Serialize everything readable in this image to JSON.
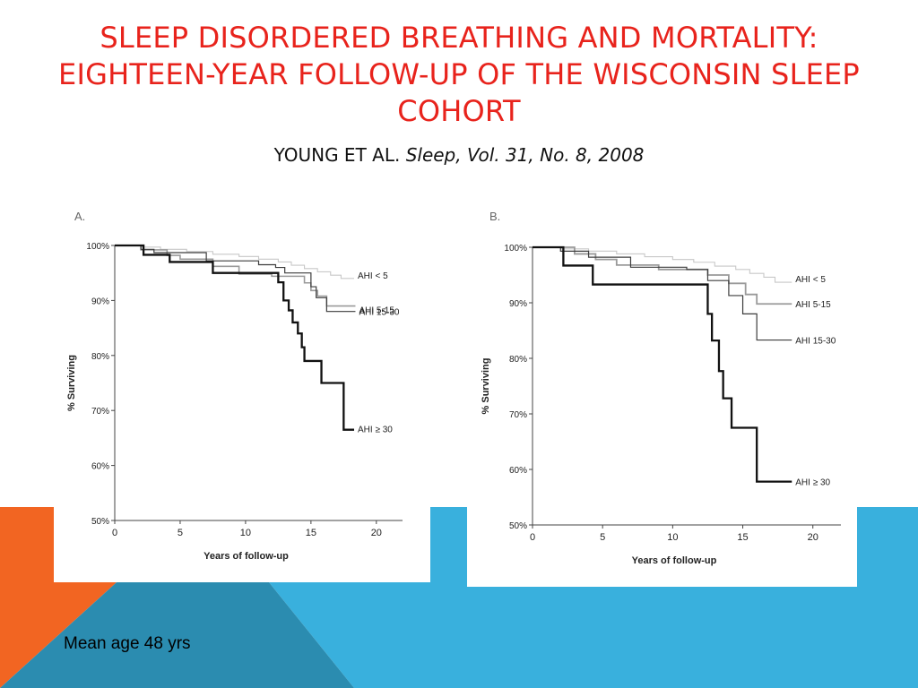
{
  "slide": {
    "title": "Sleep Disordered Breathing and Mortality: Eighteen-year Follow-up of the Wisconsin Sleep Cohort",
    "citation_authors": "Young et al. ",
    "citation_journal": "Sleep, Vol. 31, No. 8, 2008",
    "footnote": "Mean age 48 yrs",
    "colors": {
      "title": "#e8231c",
      "orange": "#f26522",
      "blue": "#39b0dd",
      "teal": "#2b8cb0"
    }
  },
  "chart_data": [
    {
      "type": "line",
      "step": true,
      "panel_label": "A.",
      "ylabel": "% Surviving",
      "xlabel": "Years of follow-up",
      "xlim": [
        0,
        22
      ],
      "ylim": [
        50,
        100
      ],
      "xticks": [
        0,
        5,
        10,
        15,
        20
      ],
      "yticks": [
        50,
        60,
        70,
        80,
        90,
        100
      ],
      "ytick_labels": [
        "50%",
        "60%",
        "70%",
        "80%",
        "90%",
        "100%"
      ],
      "grid": false,
      "legend": "inline labels at line ends",
      "series": [
        {
          "name": "AHI < 5",
          "color": "#c8c8c8",
          "width": 1.1,
          "x": [
            0,
            2,
            3.5,
            5.5,
            7.5,
            9.5,
            11,
            12.5,
            13.5,
            14.5,
            15.5,
            16.5,
            17.3,
            18.3
          ],
          "y": [
            100,
            99.7,
            99.3,
            98.9,
            98.4,
            98,
            97.5,
            97,
            96.4,
            95.8,
            95.2,
            94.6,
            94,
            94
          ]
        },
        {
          "name": "AHI 5-15",
          "color": "#9a9a9a",
          "width": 1.6,
          "x": [
            0,
            2,
            4,
            5,
            7.5,
            9.5,
            12,
            14.5,
            15,
            15.5,
            16.2,
            18.4
          ],
          "y": [
            100,
            99.2,
            98.2,
            97.5,
            96.2,
            94.8,
            94.4,
            93.2,
            91.8,
            90.8,
            89,
            89
          ]
        },
        {
          "name": "AHI 15-30",
          "color": "#3d3d3d",
          "width": 1.2,
          "x": [
            0,
            2,
            3,
            7,
            11,
            12.3,
            13,
            15,
            15.4,
            16.2,
            18.4
          ],
          "y": [
            100,
            99.3,
            98.7,
            97.2,
            96.5,
            96,
            95,
            92.5,
            90.5,
            88,
            88
          ]
        },
        {
          "name": "AHI ≥ 30",
          "color": "#111111",
          "width": 2.3,
          "x": [
            0,
            2.2,
            4.2,
            7.5,
            12.5,
            12.9,
            13.3,
            13.6,
            14,
            14.3,
            14.5,
            15.8,
            17.5,
            18.3
          ],
          "y": [
            100,
            98.3,
            97,
            95,
            93.3,
            90,
            88.2,
            86,
            84,
            81.5,
            79,
            75,
            66.5,
            66.5
          ]
        }
      ]
    },
    {
      "type": "line",
      "step": true,
      "panel_label": "B.",
      "ylabel": "% Surviving",
      "xlabel": "Years of follow-up",
      "xlim": [
        0,
        22
      ],
      "ylim": [
        50,
        100
      ],
      "xticks": [
        0,
        5,
        10,
        15,
        20
      ],
      "yticks": [
        50,
        60,
        70,
        80,
        90,
        100
      ],
      "ytick_labels": [
        "50%",
        "60%",
        "70%",
        "80%",
        "90%",
        "100%"
      ],
      "grid": false,
      "legend": "inline labels at line ends",
      "series": [
        {
          "name": "AHI < 5",
          "color": "#c8c8c8",
          "width": 1.1,
          "x": [
            0,
            2,
            4,
            6,
            8,
            10,
            11.5,
            13,
            14.5,
            15.5,
            16.5,
            17.3,
            18.5
          ],
          "y": [
            100,
            99.7,
            99.3,
            98.8,
            98.3,
            97.8,
            97.3,
            96.6,
            96,
            95.3,
            94.6,
            93.7,
            93.7
          ]
        },
        {
          "name": "AHI 5-15",
          "color": "#9a9a9a",
          "width": 1.8,
          "x": [
            0,
            3,
            4.5,
            6,
            9,
            12.5,
            14,
            15.2,
            16,
            18.5
          ],
          "y": [
            100,
            98.8,
            97.8,
            96.8,
            96,
            95,
            93.5,
            91.5,
            89.8,
            89.8
          ]
        },
        {
          "name": "AHI 15-30",
          "color": "#3d3d3d",
          "width": 1.2,
          "x": [
            0,
            2,
            4,
            7,
            11,
            12.5,
            14,
            15,
            16,
            18.5
          ],
          "y": [
            100,
            99.3,
            98.2,
            96.4,
            96,
            94,
            91.3,
            88,
            83.3,
            83.3
          ]
        },
        {
          "name": "AHI ≥ 30",
          "color": "#111111",
          "width": 2.3,
          "x": [
            0,
            2.2,
            4.3,
            12.5,
            12.8,
            13.3,
            13.6,
            14.2,
            16,
            18.5
          ],
          "y": [
            100,
            96.7,
            93.3,
            88,
            83.2,
            77.7,
            72.8,
            67.5,
            57.8,
            57.8
          ]
        }
      ]
    }
  ]
}
